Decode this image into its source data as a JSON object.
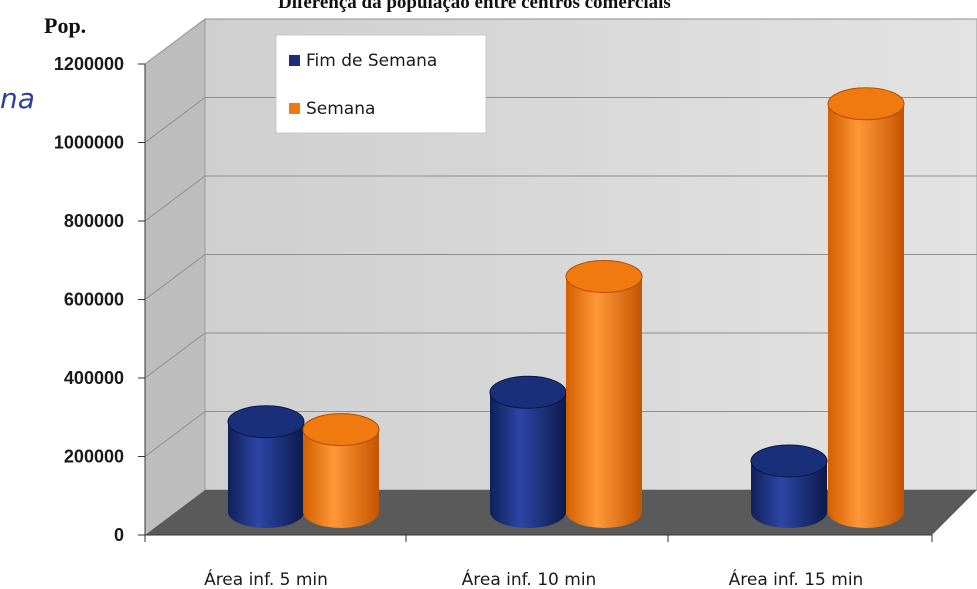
{
  "overlay_text": "na",
  "chart_data": {
    "type": "bar",
    "title": "Diferença da população entre centros comerciais",
    "ylabel": "Pop.",
    "xlabel": "",
    "ylim": [
      0,
      1200000
    ],
    "yticks": [
      "0",
      "200000",
      "400000",
      "600000",
      "800000",
      "1000000",
      "1200000"
    ],
    "categories": [
      "Área inf. 5 min",
      "Área inf. 10 min",
      "Área inf. 15 min"
    ],
    "series": [
      {
        "name": "Fim de Semana",
        "color": "#1a2f7a",
        "values": [
          230000,
          305000,
          130000
        ]
      },
      {
        "name": "Semana",
        "color": "#f07a10",
        "values": [
          210000,
          600000,
          1040000
        ]
      }
    ],
    "legend_position": "top-left",
    "grid": true,
    "style": "3d-cylinder",
    "wall_color": "#d9d9d9",
    "floor_color": "#5a5a5a"
  }
}
